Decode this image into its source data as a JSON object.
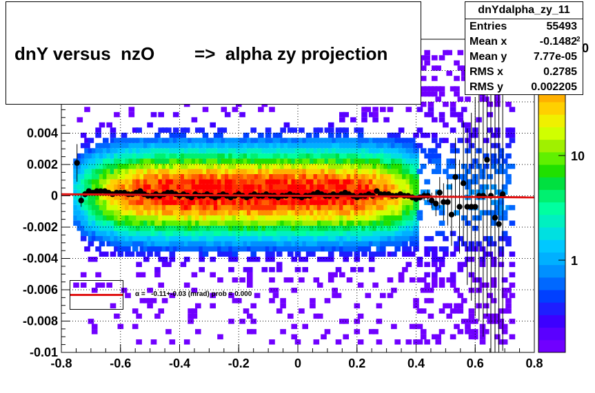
{
  "title": "dnY versus  nzO        =>  alpha zy projection",
  "stats": {
    "name": "dnYdalpha_zy_11",
    "rows": [
      {
        "label": "Entries",
        "value": "55493"
      },
      {
        "label": "Mean x",
        "value": "-0.1482"
      },
      {
        "label": "Mean y",
        "value": "7.77e-05"
      },
      {
        "label": "RMS x",
        "value": "0.2785"
      },
      {
        "label": "RMS y",
        "value": "0.002205"
      }
    ]
  },
  "fit_legend": "α =   -0.11+-0.03 (mrad) prob = 0.000",
  "colors": {
    "fit_line": "#e01010",
    "points": "#000000"
  },
  "chart_data": {
    "type": "heatmap",
    "title": "dnY versus  nzO        =>  alpha zy projection",
    "xlim": [
      -0.8,
      0.8
    ],
    "ylim": [
      -0.01,
      0.01
    ],
    "x_ticks": [
      "-0.8",
      "-0.6",
      "-0.4",
      "-0.2",
      "0",
      "0.2",
      "0.4",
      "0.6",
      "0.8"
    ],
    "y_ticks": [
      "-0.01",
      "-0.008",
      "-0.006",
      "-0.004",
      "-0.002",
      "0",
      "0.002",
      "0.004"
    ],
    "z_ticks": [
      "1",
      "10"
    ],
    "z_exponent_label": "2",
    "z_top_label": "0",
    "grid": true,
    "profile_points": {
      "x": [
        -0.747,
        -0.733,
        -0.72,
        -0.707,
        -0.693,
        -0.68,
        -0.667,
        -0.653,
        -0.64,
        -0.627,
        -0.613,
        -0.6,
        -0.587,
        -0.573,
        -0.56,
        -0.547,
        -0.533,
        -0.52,
        -0.507,
        -0.493,
        -0.48,
        -0.467,
        -0.453,
        -0.44,
        -0.427,
        -0.413,
        -0.4,
        -0.387,
        -0.373,
        -0.36,
        -0.347,
        -0.333,
        -0.32,
        -0.307,
        -0.293,
        -0.28,
        -0.267,
        -0.253,
        -0.24,
        -0.227,
        -0.213,
        -0.2,
        -0.187,
        -0.173,
        -0.16,
        -0.147,
        -0.133,
        -0.12,
        -0.107,
        -0.093,
        -0.08,
        -0.067,
        -0.053,
        -0.04,
        -0.027,
        -0.013,
        0.0,
        0.013,
        0.027,
        0.04,
        0.053,
        0.067,
        0.08,
        0.093,
        0.107,
        0.12,
        0.133,
        0.147,
        0.16,
        0.173,
        0.187,
        0.2,
        0.213,
        0.227,
        0.24,
        0.253,
        0.267,
        0.28,
        0.293,
        0.307,
        0.32,
        0.333,
        0.347,
        0.36,
        0.373,
        0.387,
        0.4,
        0.413,
        0.427,
        0.44,
        0.453,
        0.467,
        0.48,
        0.493,
        0.507,
        0.52,
        0.533,
        0.547,
        0.56,
        0.573,
        0.587,
        0.6,
        0.613,
        0.627,
        0.64,
        0.653,
        0.667,
        0.68,
        0.693
      ],
      "y": [
        0.0021,
        -0.0003,
        0.0001,
        0.0003,
        0.0002,
        0.0003,
        0.0003,
        0.0003,
        0.0002,
        0.0001,
        0.0002,
        0.0002,
        0.0002,
        0.0001,
        0.0001,
        0.0002,
        0.0003,
        0.0001,
        0.0,
        0.0,
        0.0001,
        0.0,
        0.0001,
        0.0002,
        0.0002,
        0.0001,
        0.0,
        0.0001,
        0.0,
        -0.0001,
        0.0001,
        0.0,
        0.0,
        0.0001,
        0.0,
        -0.0001,
        0.0,
        0.0001,
        0.0,
        -0.0001,
        0.0,
        0.0001,
        0.0,
        -0.0001,
        0.0,
        0.0001,
        0.0,
        0.0,
        0.0001,
        0.0,
        0.0,
        -0.0001,
        0.0,
        0.0,
        0.0001,
        0.0,
        0.0,
        -0.0001,
        0.0,
        0.0,
        0.0001,
        0.0002,
        0.0001,
        0.0,
        0.0,
        0.0001,
        0.0,
        0.0001,
        0.0002,
        0.0001,
        0.0,
        -0.0001,
        0.0,
        0.0,
        0.0001,
        0.0,
        0.0003,
        0.0001,
        0.0001,
        0.0001,
        0.0,
        0.0,
        0.0001,
        0.0,
        0.0,
        -0.0001,
        -0.0002,
        -0.0001,
        0.0,
        0.0,
        -0.0003,
        -0.0005,
        0.0002,
        -0.0004,
        -0.0004,
        -0.0012,
        0.0012,
        -0.0007,
        0.0008,
        -0.0007,
        -0.0007,
        -0.0007,
        0.0,
        0.0,
        0.0023,
        0.0,
        -0.0014,
        -0.0018,
        0.0001
      ],
      "y_err": [
        0.0012,
        0.0004,
        0.0002,
        0.0001,
        0.0001,
        0.0001,
        0.0001,
        0.0001,
        0.0001,
        0.0001,
        0.0001,
        0.0001,
        0.0001,
        0.0001,
        0.0001,
        0.0001,
        0.0001,
        0.0001,
        0.0001,
        0.0001,
        0.0001,
        0.0001,
        0.0001,
        0.0001,
        0.0001,
        0.0001,
        0.0001,
        0.0001,
        0.0001,
        0.0001,
        0.0001,
        0.0001,
        0.0001,
        0.0001,
        0.0001,
        0.0001,
        0.0001,
        0.0001,
        0.0001,
        0.0001,
        0.0001,
        0.0001,
        0.0001,
        0.0001,
        0.0001,
        0.0001,
        0.0001,
        0.0001,
        0.0001,
        0.0001,
        0.0001,
        0.0001,
        0.0001,
        0.0001,
        0.0001,
        0.0001,
        0.0001,
        0.0001,
        0.0001,
        0.0001,
        0.0001,
        0.0001,
        0.0001,
        0.0001,
        0.0001,
        0.0001,
        0.0001,
        0.0001,
        0.0001,
        0.0001,
        0.0001,
        0.0001,
        0.0001,
        0.0001,
        0.0001,
        0.0001,
        0.0001,
        0.0001,
        0.0001,
        0.0001,
        0.0001,
        0.0001,
        0.0001,
        0.0001,
        0.0001,
        0.0002,
        0.0002,
        0.0002,
        0.0003,
        0.0004,
        0.0005,
        0.0008,
        0.001,
        0.0012,
        0.0015,
        0.002,
        0.0025,
        0.003,
        0.004,
        0.005,
        0.006,
        0.007,
        0.008,
        0.009,
        0.01,
        0.01,
        0.01,
        0.01,
        0.01
      ]
    },
    "fit_line": {
      "x": [
        -0.8,
        0.8
      ],
      "y": [
        0.0001,
        -0.0001
      ]
    }
  }
}
